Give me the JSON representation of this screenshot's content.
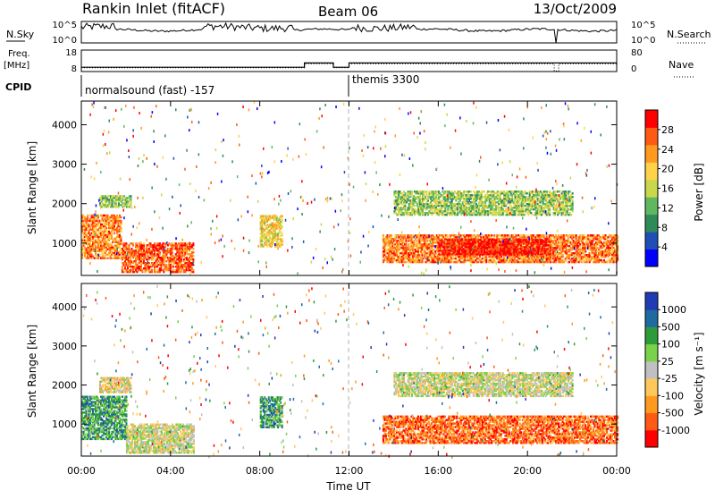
{
  "header": {
    "title": "Rankin Inlet (fitACF)",
    "beam": "Beam 06",
    "date": "13/Oct/2009"
  },
  "aux_panels": {
    "nsky": {
      "label": "N.Sky",
      "ticks": [
        "10^5",
        "10^0"
      ],
      "right_label": "N.Search",
      "right_ticks": [
        "10^5",
        "10^0"
      ]
    },
    "freq": {
      "label_line1": "Freq.",
      "label_line2": "[MHz]",
      "ticks": [
        "18",
        "8"
      ],
      "right_label": "Nave",
      "right_ticks": [
        "80",
        "0"
      ]
    },
    "cpid": {
      "label": "CPID",
      "segments": [
        {
          "text": "normalsound (fast) -157",
          "start_hour": 0.0
        },
        {
          "text": "themis 3300",
          "start_hour": 12.0
        }
      ]
    }
  },
  "chart_data": [
    {
      "type": "heatmap",
      "name": "power",
      "ylabel": "Slant Range [km]",
      "ylim": [
        180,
        4600
      ],
      "yticks": [
        "1000",
        "2000",
        "3000",
        "4000"
      ],
      "xlim": [
        0,
        24
      ],
      "colorbar_label": "Power [dB]",
      "colorbar_ticks": [
        "28",
        "24",
        "20",
        "16",
        "12",
        "8",
        "4"
      ],
      "colors": [
        "#0000ff",
        "#1f4fb4",
        "#2e8b57",
        "#5fb85f",
        "#c8d84a",
        "#ffd24a",
        "#ff9a1f",
        "#ff5a14",
        "#ff0000"
      ],
      "features": [
        {
          "t0": 0.0,
          "t1": 1.8,
          "r0": 600,
          "r1": 1700,
          "level": 0.75
        },
        {
          "t0": 1.8,
          "t1": 5.0,
          "r0": 250,
          "r1": 1000,
          "level": 0.82
        },
        {
          "t0": 8.0,
          "t1": 9.0,
          "r0": 900,
          "r1": 1700,
          "level": 0.6
        },
        {
          "t0": 13.5,
          "t1": 24.0,
          "r0": 500,
          "r1": 1200,
          "level": 0.78
        },
        {
          "t0": 16.0,
          "t1": 21.0,
          "r0": 700,
          "r1": 1100,
          "level": 0.95
        },
        {
          "t0": 0.8,
          "t1": 2.2,
          "r0": 1900,
          "r1": 2200,
          "level": 0.45
        },
        {
          "t0": 14.0,
          "t1": 22.0,
          "r0": 1700,
          "r1": 2300,
          "level": 0.45
        }
      ]
    },
    {
      "type": "heatmap",
      "name": "velocity",
      "ylabel": "Slant Range [km]",
      "ylim": [
        180,
        4600
      ],
      "yticks": [
        "1000",
        "2000",
        "3000",
        "4000"
      ],
      "xlim": [
        0,
        24
      ],
      "xticks": [
        "00:00",
        "04:00",
        "08:00",
        "12:00",
        "16:00",
        "20:00",
        "00:00"
      ],
      "xlabel": "Time UT",
      "colorbar_label": "Velocity [m s⁻¹]",
      "colorbar_ticks": [
        "1000",
        "500",
        "100",
        "25",
        "-25",
        "-100",
        "-500",
        "-1000"
      ],
      "colors": [
        "#ff0000",
        "#ff5a14",
        "#ff9a1f",
        "#ffc85a",
        "#c0c0c0",
        "#7ad24a",
        "#2e9b3a",
        "#1f6aa0",
        "#1f3cb4"
      ],
      "features": [
        {
          "t0": 0.0,
          "t1": 2.0,
          "r0": 600,
          "r1": 1700,
          "level": 0.72
        },
        {
          "t0": 2.0,
          "t1": 5.0,
          "r0": 250,
          "r1": 1000,
          "level": 0.5
        },
        {
          "t0": 8.0,
          "t1": 9.0,
          "r0": 900,
          "r1": 1700,
          "level": 0.72
        },
        {
          "t0": 13.5,
          "t1": 24.0,
          "r0": 500,
          "r1": 1200,
          "level": 0.2
        },
        {
          "t0": 14.0,
          "t1": 22.0,
          "r0": 1700,
          "r1": 2300,
          "level": 0.5
        },
        {
          "t0": 0.8,
          "t1": 2.2,
          "r0": 1800,
          "r1": 2200,
          "level": 0.45
        }
      ]
    }
  ]
}
